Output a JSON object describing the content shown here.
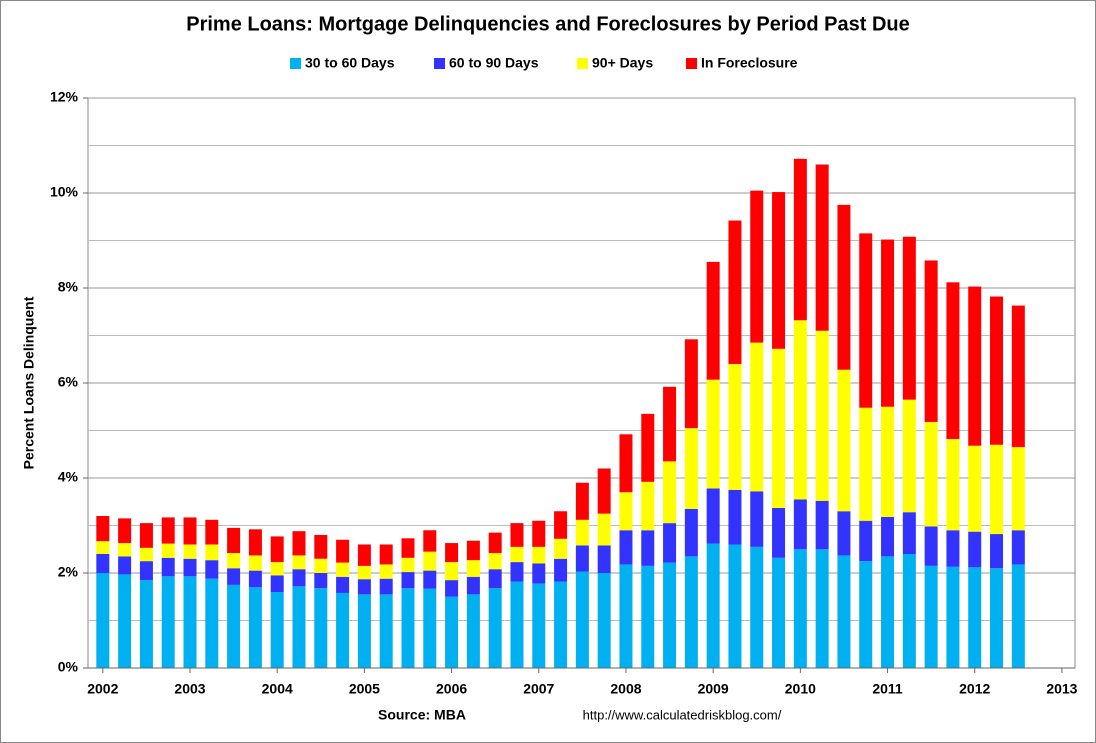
{
  "chart_data": {
    "type": "stacked_bar",
    "title": "Prime Loans: Mortgage Delinquencies and Foreclosures by Period Past Due",
    "y_label": "Percent Loans Delinquent",
    "source": "Source: MBA",
    "url": "http://www.calculatedriskblog.com/",
    "x": [
      2002,
      2002.25,
      2002.5,
      2002.75,
      2003,
      2003.25,
      2003.5,
      2003.75,
      2004,
      2004.25,
      2004.5,
      2004.75,
      2005,
      2005.25,
      2005.5,
      2005.75,
      2006,
      2006.25,
      2006.5,
      2006.75,
      2007,
      2007.25,
      2007.5,
      2007.75,
      2008,
      2008.25,
      2008.5,
      2008.75,
      2009,
      2009.25,
      2009.5,
      2009.75,
      2010,
      2010.25,
      2010.5,
      2010.75,
      2011,
      2011.25,
      2011.5,
      2011.75,
      2012,
      2012.25,
      2012.5
    ],
    "series": [
      {
        "name": "30 to 60 Days",
        "color": "#00b0f0",
        "values": [
          2.0,
          1.97,
          1.85,
          1.93,
          1.93,
          1.88,
          1.75,
          1.7,
          1.6,
          1.72,
          1.68,
          1.58,
          1.55,
          1.55,
          1.68,
          1.67,
          1.5,
          1.55,
          1.68,
          1.82,
          1.78,
          1.82,
          2.03,
          2.0,
          2.18,
          2.15,
          2.22,
          2.35,
          2.62,
          2.6,
          2.55,
          2.32,
          2.5,
          2.5,
          2.37,
          2.25,
          2.35,
          2.4,
          2.15,
          2.13,
          2.12,
          2.1,
          2.18
        ]
      },
      {
        "name": "60 to 90 Days",
        "color": "#3333ff",
        "values": [
          0.4,
          0.38,
          0.4,
          0.39,
          0.37,
          0.39,
          0.35,
          0.35,
          0.35,
          0.36,
          0.32,
          0.34,
          0.32,
          0.33,
          0.34,
          0.38,
          0.35,
          0.37,
          0.4,
          0.41,
          0.42,
          0.48,
          0.55,
          0.58,
          0.72,
          0.75,
          0.83,
          1.0,
          1.16,
          1.15,
          1.17,
          1.05,
          1.05,
          1.02,
          0.93,
          0.85,
          0.83,
          0.88,
          0.83,
          0.77,
          0.75,
          0.72,
          0.72
        ]
      },
      {
        "name": "90+ Days",
        "color": "#ffff00",
        "values": [
          0.27,
          0.28,
          0.28,
          0.3,
          0.3,
          0.33,
          0.32,
          0.32,
          0.28,
          0.29,
          0.3,
          0.3,
          0.28,
          0.3,
          0.3,
          0.4,
          0.38,
          0.35,
          0.34,
          0.32,
          0.35,
          0.42,
          0.54,
          0.67,
          0.8,
          1.02,
          1.3,
          1.7,
          2.29,
          2.65,
          3.13,
          3.35,
          3.77,
          3.58,
          2.98,
          2.38,
          2.32,
          2.37,
          2.2,
          1.92,
          1.81,
          1.88,
          1.75
        ]
      },
      {
        "name": "In Foreclosure",
        "color": "#ff0000",
        "values": [
          0.53,
          0.52,
          0.52,
          0.55,
          0.57,
          0.52,
          0.53,
          0.55,
          0.54,
          0.51,
          0.5,
          0.48,
          0.45,
          0.42,
          0.41,
          0.45,
          0.4,
          0.41,
          0.43,
          0.5,
          0.55,
          0.58,
          0.78,
          0.95,
          1.22,
          1.43,
          1.57,
          1.87,
          2.48,
          3.02,
          3.2,
          3.3,
          3.4,
          3.5,
          3.47,
          3.67,
          3.52,
          3.43,
          3.4,
          3.3,
          3.35,
          3.12,
          2.98
        ]
      }
    ],
    "xlim": [
      2001.83,
      2013.15
    ],
    "xticks": [
      2002,
      2003,
      2004,
      2005,
      2006,
      2007,
      2008,
      2009,
      2010,
      2011,
      2012,
      2013
    ],
    "ylim": [
      0,
      12
    ],
    "yticks": [
      {
        "value": 0,
        "label": "0%"
      },
      {
        "value": 2,
        "label": "2%"
      },
      {
        "value": 4,
        "label": "4%"
      },
      {
        "value": 6,
        "label": "6%"
      },
      {
        "value": 8,
        "label": "8%"
      },
      {
        "value": 10,
        "label": "10%"
      },
      {
        "value": 12,
        "label": "12%"
      }
    ],
    "yminor": [
      1,
      3,
      5,
      7,
      9,
      11
    ],
    "grid": true,
    "legend": "top"
  }
}
